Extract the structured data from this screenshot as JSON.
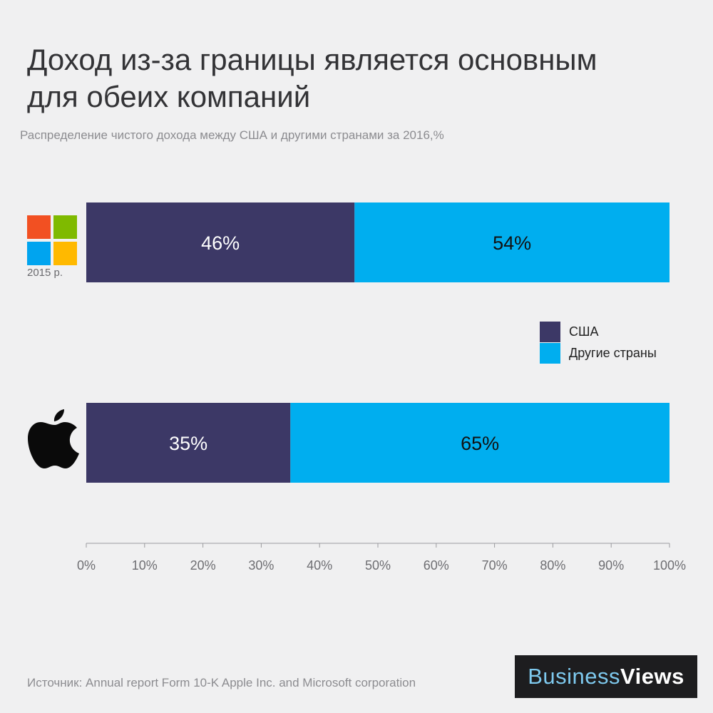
{
  "header": {
    "title_line1": "Доход из-за границы является основным",
    "title_line2": "для обеих компаний",
    "subtitle": "Распределение  чистого дохода между США и другими странами за 2016,%"
  },
  "logos": {
    "microsoft": {
      "icon": "microsoft-logo-icon",
      "colors": [
        "#f25022",
        "#7fba00",
        "#00a4ef",
        "#ffb900"
      ],
      "note": "2015 р."
    },
    "apple": {
      "icon": "apple-logo-icon"
    }
  },
  "chart_data": {
    "type": "bar",
    "orientation": "horizontal",
    "stacked": true,
    "title": "Доход из-за границы является основным для обеих компаний",
    "subtitle": "Распределение  чистого дохода между США и другими странами за 2016,%",
    "categories": [
      "Microsoft",
      "Apple"
    ],
    "series": [
      {
        "name": "США",
        "values": [
          46,
          35
        ],
        "color": "#3c3866",
        "labels": [
          "46%",
          "35%"
        ]
      },
      {
        "name": "Другие страны",
        "values": [
          54,
          65
        ],
        "color": "#00aeef",
        "labels": [
          "54%",
          "65%"
        ]
      }
    ],
    "xlim": [
      0,
      100
    ],
    "xticks": [
      "0%",
      "10%",
      "20%",
      "30%",
      "40%",
      "50%",
      "60%",
      "70%",
      "80%",
      "90%",
      "100%"
    ],
    "grid": false,
    "legend_position": "right"
  },
  "footer": {
    "source": "Источник: Annual report Form 10-K Apple Inc. and Microsoft corporation",
    "brand_part1": "Business",
    "brand_part2": "Views"
  }
}
